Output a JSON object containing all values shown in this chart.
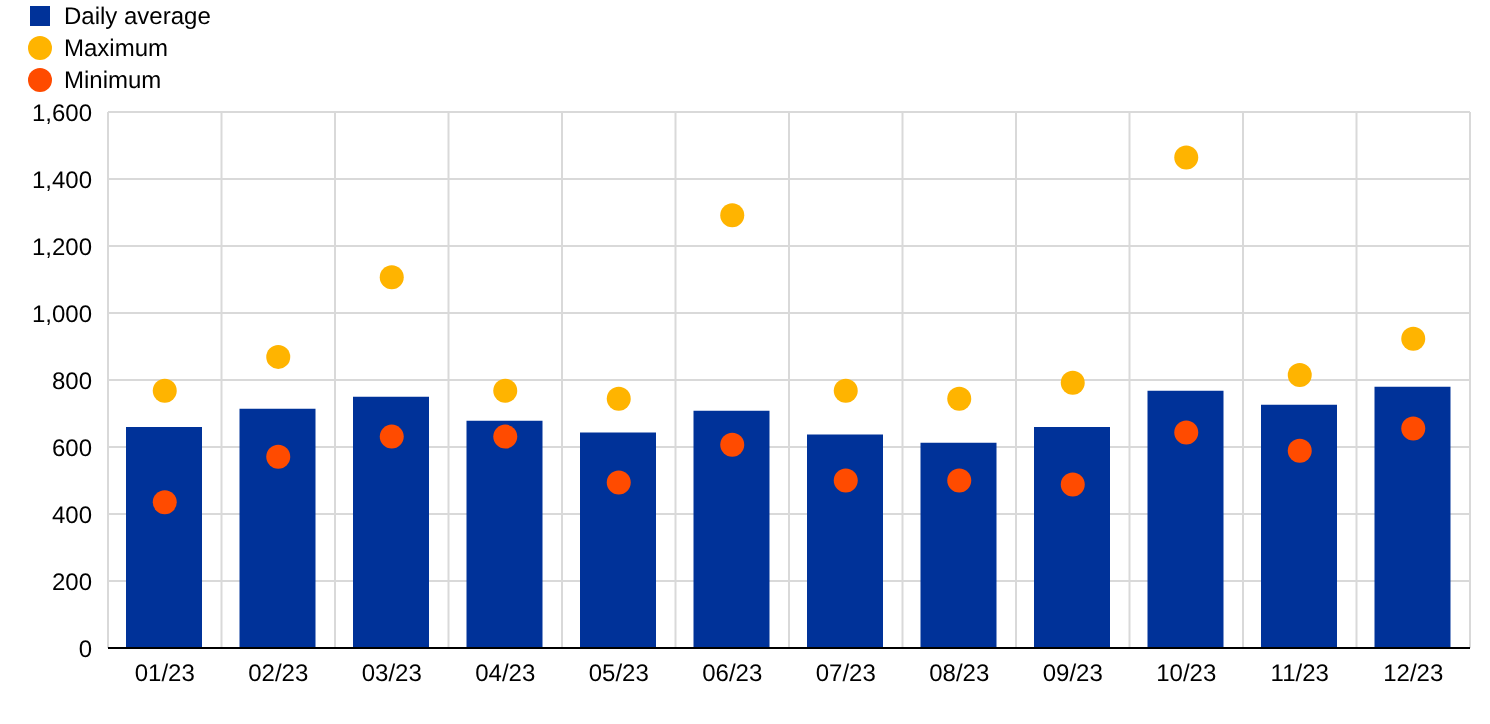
{
  "chart_data": {
    "type": "bar",
    "categories": [
      "01/23",
      "02/23",
      "03/23",
      "04/23",
      "05/23",
      "06/23",
      "07/23",
      "08/23",
      "09/23",
      "10/23",
      "11/23",
      "12/23"
    ],
    "series": [
      {
        "name": "Daily average",
        "color": "#003299",
        "values": [
          660,
          714,
          750,
          678,
          643,
          708,
          637,
          613,
          660,
          768,
          726,
          780
        ]
      },
      {
        "name": "Maximum",
        "type": "scatter",
        "color": "#ffb400",
        "values": [
          768,
          869,
          1107,
          768,
          744,
          1292,
          768,
          744,
          792,
          1464,
          815,
          923
        ]
      },
      {
        "name": "Minimum",
        "type": "scatter",
        "color": "#ff4b00",
        "values": [
          435,
          571,
          631,
          631,
          494,
          607,
          500,
          500,
          488,
          643,
          589,
          655
        ]
      }
    ],
    "ylim": [
      0,
      1600
    ],
    "yticks": [
      0,
      200,
      400,
      600,
      800,
      {
        "value": 1000,
        "label": "1,000"
      },
      {
        "value": 1200,
        "label": "1,200"
      },
      {
        "value": 1400,
        "label": "1,400"
      },
      {
        "value": 1600,
        "label": "1,600"
      }
    ],
    "grid": true,
    "legend": "top left",
    "marker": "circle"
  }
}
